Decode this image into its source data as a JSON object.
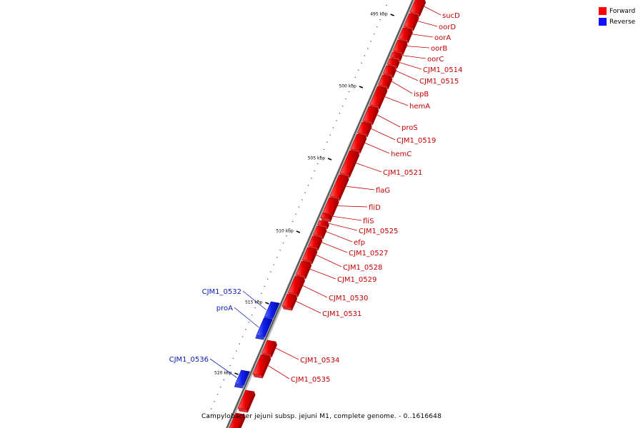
{
  "title": "Campylobacter jejuni subsp. jejuni M1, complete genome. - 0..1616648",
  "colors": {
    "forward": "#e00000",
    "reverse": "#0a1ae6",
    "forward_label": "#c00000",
    "reverse_label": "#0a1ab4"
  },
  "legend": [
    {
      "label": "Forward",
      "color": "#ff0000"
    },
    {
      "label": "Reverse",
      "color": "#1010ff"
    }
  ],
  "chart_data": {
    "type": "genome-map",
    "tick_labels": [
      "495 kbp",
      "500 kbp",
      "505 kbp",
      "510 kbp",
      "515 kbp",
      "520 kbp"
    ],
    "genes": [
      {
        "name": "sucD",
        "strand": "forward"
      },
      {
        "name": "oorD",
        "strand": "forward"
      },
      {
        "name": "oorA",
        "strand": "forward"
      },
      {
        "name": "oorB",
        "strand": "forward"
      },
      {
        "name": "oorC",
        "strand": "forward"
      },
      {
        "name": "CJM1_0514",
        "strand": "forward"
      },
      {
        "name": "CJM1_0515",
        "strand": "forward"
      },
      {
        "name": "ispB",
        "strand": "forward"
      },
      {
        "name": "hemA",
        "strand": "forward"
      },
      {
        "name": "proS",
        "strand": "forward"
      },
      {
        "name": "CJM1_0519",
        "strand": "forward"
      },
      {
        "name": "hemC",
        "strand": "forward"
      },
      {
        "name": "CJM1_0521",
        "strand": "forward"
      },
      {
        "name": "flaG",
        "strand": "forward"
      },
      {
        "name": "fliD",
        "strand": "forward"
      },
      {
        "name": "fliS",
        "strand": "forward"
      },
      {
        "name": "CJM1_0525",
        "strand": "forward"
      },
      {
        "name": "efp",
        "strand": "forward"
      },
      {
        "name": "CJM1_0527",
        "strand": "forward"
      },
      {
        "name": "CJM1_0528",
        "strand": "forward"
      },
      {
        "name": "CJM1_0529",
        "strand": "forward"
      },
      {
        "name": "CJM1_0530",
        "strand": "forward"
      },
      {
        "name": "CJM1_0531",
        "strand": "forward"
      },
      {
        "name": "CJM1_0532",
        "strand": "reverse"
      },
      {
        "name": "proA",
        "strand": "reverse"
      },
      {
        "name": "CJM1_0534",
        "strand": "forward"
      },
      {
        "name": "CJM1_0535",
        "strand": "forward"
      },
      {
        "name": "CJM1_0536",
        "strand": "reverse"
      }
    ]
  }
}
